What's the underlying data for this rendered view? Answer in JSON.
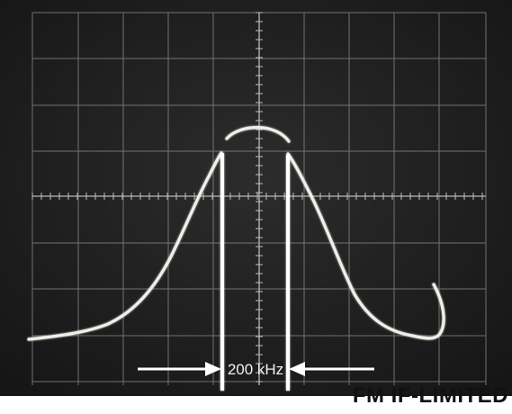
{
  "image": {
    "description_free": true,
    "frequency_marker": {
      "label": "200 kHz"
    },
    "caption": "FM IF-LIMITED",
    "colors": {
      "screen_background": "#232323",
      "graticule": "#9a9a9a",
      "trace": "#f0f0ea",
      "caption_text": "#111111"
    }
  }
}
